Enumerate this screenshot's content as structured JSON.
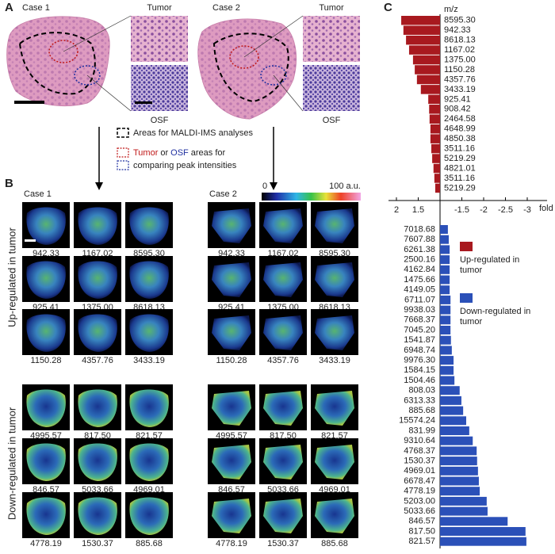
{
  "panel_a": {
    "label": "A",
    "cases": [
      {
        "title": "Case 1",
        "inset_top": "Tumor",
        "inset_bottom": "OSF"
      },
      {
        "title": "Case 2",
        "inset_top": "Tumor",
        "inset_bottom": "OSF"
      }
    ],
    "legend": {
      "dashed": "Areas for MALDI-IMS analyses",
      "tumor": "Tumor",
      "or": "or",
      "osf": "OSF",
      "areas_for": "areas for",
      "comparing": "comparing peak intensities"
    }
  },
  "panel_b": {
    "label": "B",
    "colorbar": {
      "min": "0",
      "max": "100 a.u."
    },
    "side_labels": [
      "Up-regulated in tumor",
      "Down-regulated in tumor"
    ],
    "cases": [
      {
        "title": "Case 1",
        "rows": [
          [
            "942.33",
            "1167.02",
            "8595.30"
          ],
          [
            "925.41",
            "1375.00",
            "8618.13"
          ],
          [
            "1150.28",
            "4357.76",
            "3433.19"
          ],
          [
            "4995.57",
            "817.50",
            "821.57"
          ],
          [
            "846.57",
            "5033.66",
            "4969.01"
          ],
          [
            "4778.19",
            "1530.37",
            "885.68"
          ]
        ]
      },
      {
        "title": "Case 2",
        "rows": [
          [
            "942.33",
            "1167.02",
            "8595.30"
          ],
          [
            "925.41",
            "1375.00",
            "8618.13"
          ],
          [
            "1150.28",
            "4357.76",
            "3433.19"
          ],
          [
            "4995.57",
            "817.50",
            "821.57"
          ],
          [
            "846.57",
            "5033.66",
            "4969.01"
          ],
          [
            "4778.19",
            "1530.37",
            "885.68"
          ]
        ]
      }
    ]
  },
  "panel_c": {
    "type": "bar",
    "label": "C",
    "axis_label": "m/z",
    "xlabel": "fold",
    "xlim": [
      2,
      -3
    ],
    "xticks": [
      2,
      1.5,
      -1.5,
      -2,
      -2.5,
      -3
    ],
    "series": [
      {
        "name": "Up-regulated in tumor",
        "color": "#a8191f",
        "categories": [
          "8595.30",
          "942.33",
          "8618.13",
          "1167.02",
          "1375.00",
          "1150.28",
          "4357.76",
          "3433.19",
          "925.41",
          "908.42",
          "2464.58",
          "4648.99",
          "4850.38",
          "3511.16",
          "5219.29",
          "4821.01",
          "3511.16",
          "5219.29"
        ],
        "values": [
          1.89,
          1.84,
          1.78,
          1.71,
          1.62,
          1.58,
          1.53,
          1.44,
          1.27,
          1.25,
          1.24,
          1.22,
          1.22,
          1.2,
          1.18,
          1.15,
          1.13,
          1.11
        ]
      },
      {
        "name": "Down-regulated in tumor",
        "color": "#2b50b8",
        "categories": [
          "7018.68",
          "7607.88",
          "6261.38",
          "2500.16",
          "4162.84",
          "1475.66",
          "4149.05",
          "6711.07",
          "9938.03",
          "7668.37",
          "7045.20",
          "1541.87",
          "6948.74",
          "9976.30",
          "1584.15",
          "1504.46",
          "808.03",
          "6313.33",
          "885.68",
          "15574.24",
          "831.99",
          "9310.64",
          "4768.37",
          "1530.37",
          "4969.01",
          "6678.47",
          "4778.19",
          "5203.00",
          "5033.66",
          "846.57",
          "817.50",
          "821.57"
        ],
        "values": [
          -1.18,
          -1.2,
          -1.22,
          -1.22,
          -1.22,
          -1.22,
          -1.22,
          -1.24,
          -1.24,
          -1.24,
          -1.24,
          -1.25,
          -1.27,
          -1.31,
          -1.31,
          -1.33,
          -1.45,
          -1.49,
          -1.53,
          -1.6,
          -1.67,
          -1.75,
          -1.84,
          -1.85,
          -1.87,
          -1.89,
          -1.91,
          -2.07,
          -2.09,
          -2.55,
          -2.96,
          -2.98
        ]
      }
    ]
  }
}
